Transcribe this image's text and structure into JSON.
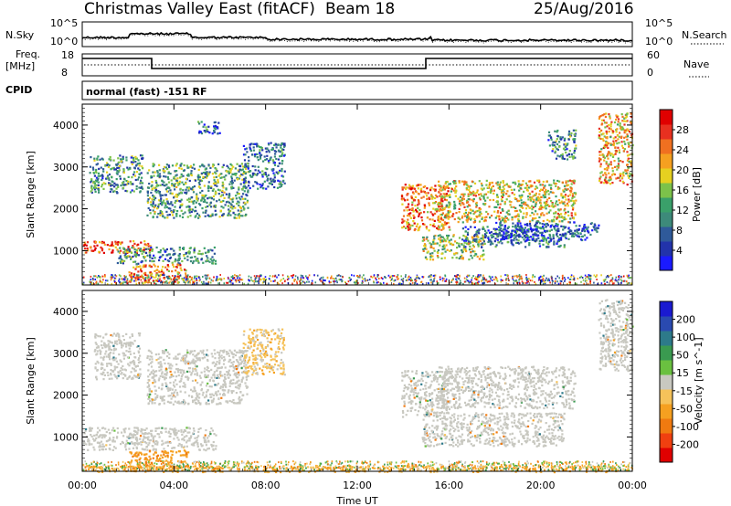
{
  "header": {
    "radar_title": "Christmas Valley East (fitACF)",
    "beam_label": "Beam 18",
    "date": "25/Aug/2016"
  },
  "noise_panel": {
    "left_label": "N.Sky",
    "right_label": "N.Search",
    "left_ticks": [
      "10^5",
      "10^0"
    ],
    "right_ticks": [
      "10^5",
      "10^0"
    ]
  },
  "freq_panel": {
    "left_label_1": "Freq.",
    "left_label_2": "[MHz]",
    "left_ticks": [
      "18",
      "8"
    ],
    "right_label": "Nave",
    "right_ticks": [
      "60",
      "0"
    ]
  },
  "cpid": {
    "label": "CPID",
    "mode_text": "normal (fast) -151 RF"
  },
  "colors": {
    "power_scale": [
      "#1a1aff",
      "#2233aa",
      "#2f5a9a",
      "#3d8a7a",
      "#3aa06a",
      "#7cc24a",
      "#e6d020",
      "#f5a020",
      "#f07020",
      "#e83020",
      "#e00000"
    ],
    "velocity_scale": [
      "#e00000",
      "#f04010",
      "#f07a10",
      "#f5a020",
      "#f5c25a",
      "#c8c8c0",
      "#6ac040",
      "#3a9a50",
      "#2d7a8a",
      "#2a4ab0",
      "#1a1ad0"
    ],
    "ground_scatter": "#c8c8c0"
  },
  "chart_data": [
    {
      "type": "heatmap",
      "name": "power",
      "ylabel": "Slant Range [km]",
      "colorbar_label": "Power [dB]",
      "colorbar_ticks": [
        "28",
        "24",
        "20",
        "16",
        "12",
        "8",
        "4"
      ],
      "y_ticks": [
        "4000",
        "3000",
        "2000",
        "1000"
      ],
      "ylim": [
        180,
        4500
      ],
      "xlim": [
        0,
        24
      ],
      "features": [
        {
          "t0": 0.0,
          "t1": 3.0,
          "r0": 950,
          "r1": 1250,
          "value": 24
        },
        {
          "t0": 1.5,
          "t1": 5.8,
          "r0": 700,
          "r1": 1100,
          "value": 10
        },
        {
          "t0": 2.0,
          "t1": 4.6,
          "r0": 250,
          "r1": 700,
          "value": 22
        },
        {
          "t0": 0.3,
          "t1": 2.6,
          "r0": 2400,
          "r1": 3300,
          "value": 10
        },
        {
          "t0": 2.8,
          "t1": 7.2,
          "r0": 1800,
          "r1": 3100,
          "value": 12
        },
        {
          "t0": 5.0,
          "t1": 6.0,
          "r0": 3800,
          "r1": 4100,
          "value": 8
        },
        {
          "t0": 7.0,
          "t1": 8.8,
          "r0": 2500,
          "r1": 3600,
          "value": 8
        },
        {
          "t0": 13.9,
          "t1": 16.0,
          "r0": 1500,
          "r1": 2600,
          "value": 22
        },
        {
          "t0": 14.8,
          "t1": 17.5,
          "r0": 800,
          "r1": 1400,
          "value": 16
        },
        {
          "t0": 16.5,
          "t1": 21.0,
          "r0": 1100,
          "r1": 1600,
          "value": 8
        },
        {
          "t0": 15.5,
          "t1": 21.5,
          "r0": 1700,
          "r1": 2700,
          "value": 18
        },
        {
          "t0": 18.0,
          "t1": 22.5,
          "r0": 1250,
          "r1": 1700,
          "value": 6
        },
        {
          "t0": 20.3,
          "t1": 21.5,
          "r0": 3200,
          "r1": 3900,
          "value": 10
        },
        {
          "t0": 22.5,
          "t1": 24.0,
          "r0": 2600,
          "r1": 4300,
          "value": 20
        }
      ]
    },
    {
      "type": "heatmap",
      "name": "velocity",
      "ylabel": "Slant Range [km]",
      "xlabel": "Time UT",
      "colorbar_label": "Velocity [m s^-1]",
      "colorbar_ticks": [
        "200",
        "100",
        "50",
        "15",
        "-15",
        "-50",
        "-100",
        "-200"
      ],
      "y_ticks": [
        "4000",
        "3000",
        "2000",
        "1000"
      ],
      "x_ticks": [
        "00:00",
        "04:00",
        "08:00",
        "12:00",
        "16:00",
        "20:00",
        "00:00"
      ],
      "ylim": [
        180,
        4500
      ],
      "xlim": [
        0,
        24
      ],
      "features": [
        {
          "t0": 0.0,
          "t1": 5.8,
          "r0": 700,
          "r1": 1250,
          "value": 0
        },
        {
          "t0": 2.0,
          "t1": 4.6,
          "r0": 250,
          "r1": 700,
          "value": -80
        },
        {
          "t0": 0.0,
          "t1": 24.0,
          "r0": 180,
          "r1": 330,
          "value": -60
        },
        {
          "t0": 0.5,
          "t1": 2.5,
          "r0": 2400,
          "r1": 3500,
          "value": 0
        },
        {
          "t0": 2.8,
          "t1": 7.2,
          "r0": 1800,
          "r1": 3100,
          "value": 0
        },
        {
          "t0": 7.0,
          "t1": 8.8,
          "r0": 2500,
          "r1": 3600,
          "value": -30
        },
        {
          "t0": 13.9,
          "t1": 16.0,
          "r0": 1500,
          "r1": 2600,
          "value": 0
        },
        {
          "t0": 14.8,
          "t1": 21.0,
          "r0": 800,
          "r1": 1600,
          "value": 0
        },
        {
          "t0": 15.5,
          "t1": 21.5,
          "r0": 1700,
          "r1": 2700,
          "value": 0
        },
        {
          "t0": 22.5,
          "t1": 24.0,
          "r0": 2600,
          "r1": 4300,
          "value": 0
        }
      ]
    }
  ]
}
